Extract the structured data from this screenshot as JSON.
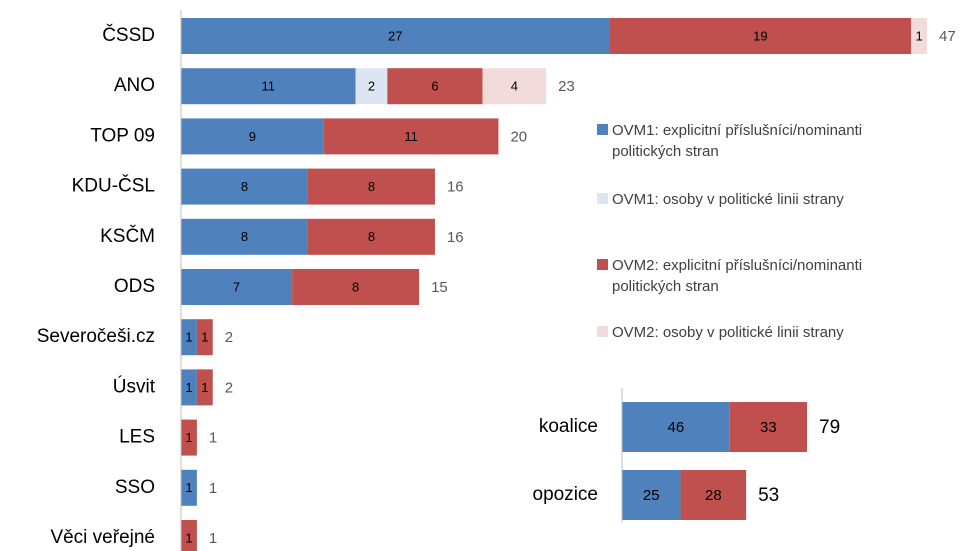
{
  "chart_data": [
    {
      "type": "bar",
      "orientation": "horizontal",
      "stacked": true,
      "categories": [
        "ČSSD",
        "ANO",
        "TOP 09",
        "KDU-ČSL",
        "KSČM",
        "ODS",
        "Severočeši.cz",
        "Úsvit",
        "LES",
        "SSO",
        "Věci veřejné"
      ],
      "series": [
        {
          "name": "OVM1: explicitní příslušníci/nominanti politických stran",
          "color": "#4f81bd",
          "values": [
            27,
            11,
            9,
            8,
            8,
            7,
            1,
            1,
            0,
            1,
            0
          ]
        },
        {
          "name": "OVM1: osoby v politické linii strany",
          "color": "#dce6f2",
          "values": [
            0,
            2,
            0,
            0,
            0,
            0,
            0,
            0,
            0,
            0,
            0
          ]
        },
        {
          "name": "OVM2: explicitní příslušníci/nominanti politických stran",
          "color": "#c0504d",
          "values": [
            19,
            6,
            11,
            8,
            8,
            8,
            1,
            1,
            1,
            0,
            1
          ]
        },
        {
          "name": "OVM2: osoby v politické linii strany",
          "color": "#f2dcdb",
          "values": [
            1,
            4,
            0,
            0,
            0,
            0,
            0,
            0,
            0,
            0,
            0
          ]
        }
      ],
      "totals": [
        47,
        23,
        20,
        16,
        16,
        15,
        2,
        2,
        1,
        1,
        1
      ],
      "xlim": [
        0,
        47
      ],
      "legend": "right"
    },
    {
      "type": "bar",
      "orientation": "horizontal",
      "stacked": true,
      "categories": [
        "koalice",
        "opozice"
      ],
      "series": [
        {
          "color": "#4f81bd",
          "values": [
            46,
            25
          ]
        },
        {
          "color": "#c0504d",
          "values": [
            33,
            28
          ]
        }
      ],
      "totals": [
        79,
        53
      ],
      "xlim": [
        0,
        79
      ]
    }
  ]
}
